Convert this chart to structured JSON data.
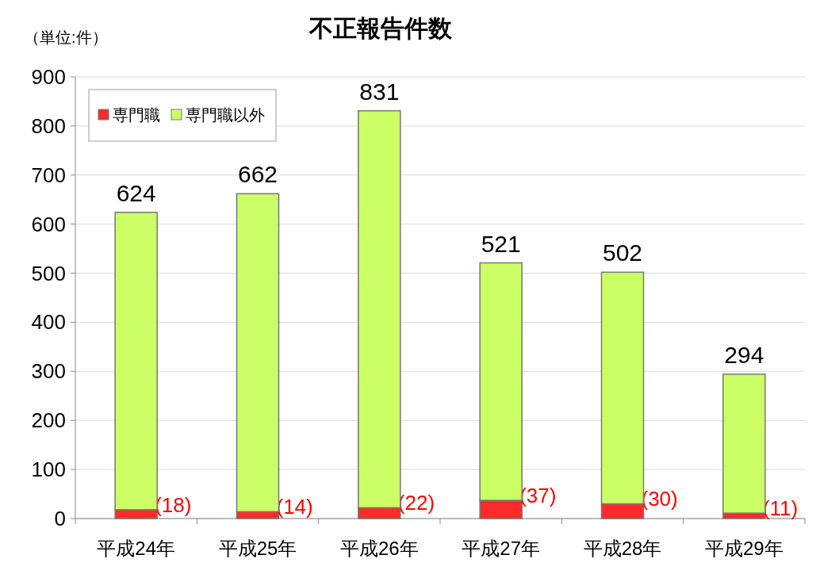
{
  "chart_data": {
    "type": "bar",
    "title": "不正報告件数",
    "annotations": [
      "（単位:件）"
    ],
    "categories": [
      "平成24年",
      "平成25年",
      "平成26年",
      "平成27年",
      "平成28年",
      "平成29年"
    ],
    "stacked": true,
    "series": [
      {
        "name": "専門職",
        "color": "#ff2a2a",
        "values": [
          18,
          14,
          22,
          37,
          30,
          11
        ],
        "value_labels": [
          "(18)",
          "(14)",
          "(22)",
          "(37)",
          "(30)",
          "(11)"
        ]
      },
      {
        "name": "専門職以外",
        "color": "#ccff66",
        "values": [
          606,
          648,
          809,
          484,
          472,
          283
        ]
      }
    ],
    "totals": [
      "624",
      "662",
      "831",
      "521",
      "502",
      "294"
    ],
    "ylim": [
      0,
      900
    ],
    "yticks": [
      0,
      100,
      200,
      300,
      400,
      500,
      600,
      700,
      800,
      900
    ],
    "grid": "y",
    "legend": "top left"
  }
}
